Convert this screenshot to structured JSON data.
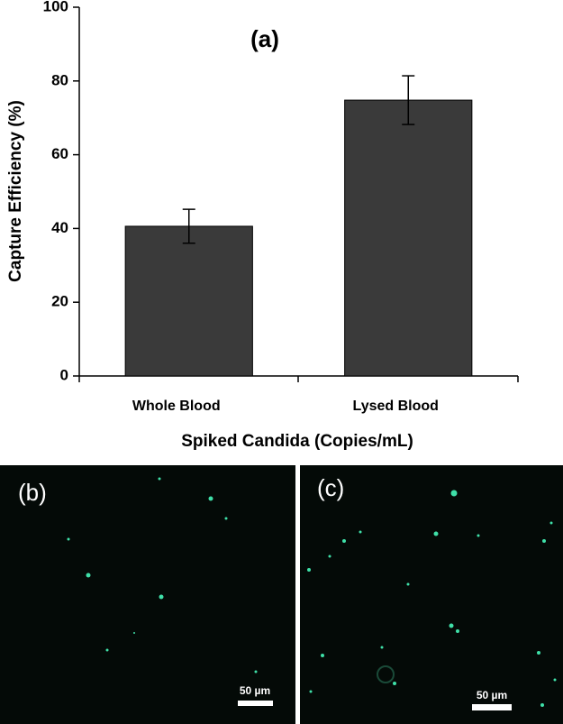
{
  "chart_data": {
    "type": "bar",
    "title": "(a)",
    "ylabel": "Capture Efficiency (%)",
    "xlabel": "Spiked Candida  (Copies/mL)",
    "categories": [
      "Whole Blood",
      "Lysed Blood"
    ],
    "values": [
      40.6,
      74.8
    ],
    "errors": [
      4.6,
      6.6
    ],
    "color": "#3a3a3a",
    "ylim": [
      0,
      100
    ],
    "yticks": [
      0,
      20,
      40,
      60,
      80,
      100
    ],
    "grid": false
  },
  "images": [
    {
      "label": "(b)",
      "scale_bar": "50 µm"
    },
    {
      "label": "(c)",
      "scale_bar": "50 µm"
    }
  ]
}
